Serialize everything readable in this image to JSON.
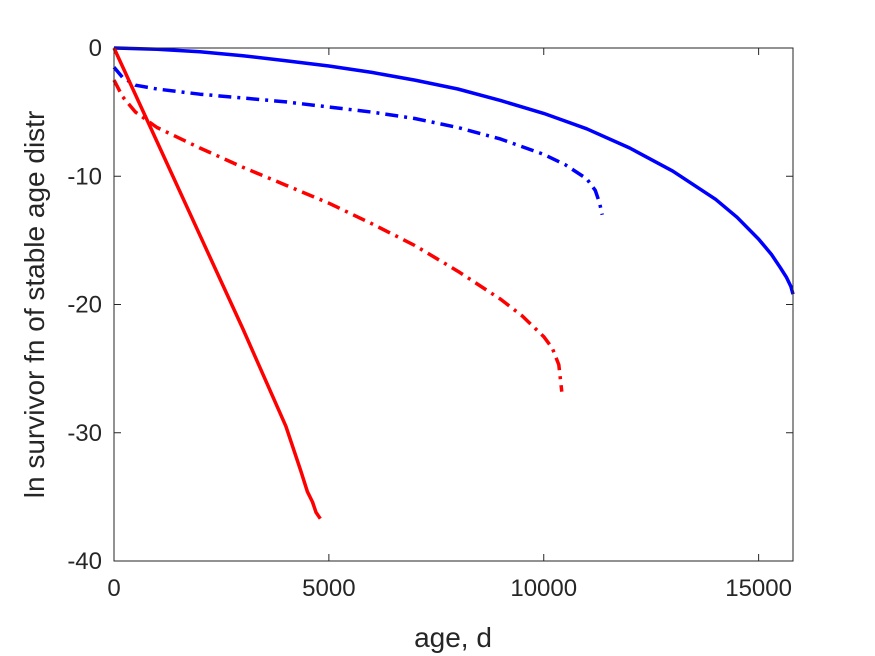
{
  "chart_data": {
    "type": "line",
    "xlabel": "age, d",
    "ylabel": "ln survivor fn of stable age distr",
    "xlim": [
      0,
      15800
    ],
    "ylim": [
      -40,
      0
    ],
    "xticks": [
      0,
      5000,
      10000,
      15000
    ],
    "yticks": [
      0,
      -10,
      -20,
      -30,
      -40
    ],
    "xtick_labels": [
      "0",
      "5000",
      "10000",
      "15000"
    ],
    "ytick_labels": [
      "0",
      "-10",
      "-20",
      "-30",
      "-40"
    ],
    "grid": false,
    "legend": "none",
    "series": [
      {
        "color": "#0000ff",
        "style": "solid",
        "points": [
          [
            0,
            0
          ],
          [
            1000,
            -0.1
          ],
          [
            2000,
            -0.3
          ],
          [
            3000,
            -0.6
          ],
          [
            4000,
            -1.0
          ],
          [
            5000,
            -1.4
          ],
          [
            6000,
            -1.9
          ],
          [
            7000,
            -2.5
          ],
          [
            8000,
            -3.2
          ],
          [
            9000,
            -4.1
          ],
          [
            10000,
            -5.1
          ],
          [
            11000,
            -6.3
          ],
          [
            12000,
            -7.8
          ],
          [
            13000,
            -9.6
          ],
          [
            14000,
            -11.8
          ],
          [
            14500,
            -13.2
          ],
          [
            15000,
            -14.9
          ],
          [
            15300,
            -16.1
          ],
          [
            15500,
            -17.1
          ],
          [
            15650,
            -17.9
          ],
          [
            15750,
            -18.6
          ],
          [
            15800,
            -19.2
          ]
        ]
      },
      {
        "color": "#0000ff",
        "style": "dashdot",
        "points": [
          [
            0,
            -1.5
          ],
          [
            200,
            -2.3
          ],
          [
            500,
            -2.9
          ],
          [
            1000,
            -3.2
          ],
          [
            2000,
            -3.6
          ],
          [
            3000,
            -3.9
          ],
          [
            4000,
            -4.2
          ],
          [
            5000,
            -4.6
          ],
          [
            6000,
            -5.0
          ],
          [
            7000,
            -5.5
          ],
          [
            8000,
            -6.2
          ],
          [
            9000,
            -7.1
          ],
          [
            10000,
            -8.3
          ],
          [
            10500,
            -9.1
          ],
          [
            11000,
            -10.2
          ],
          [
            11200,
            -11.1
          ],
          [
            11300,
            -12.1
          ],
          [
            11360,
            -13.0
          ]
        ]
      },
      {
        "color": "#ff0000",
        "style": "solid",
        "points": [
          [
            0,
            0
          ],
          [
            1000,
            -7.3
          ],
          [
            2000,
            -14.6
          ],
          [
            3000,
            -21.9
          ],
          [
            4000,
            -29.5
          ],
          [
            4350,
            -33.0
          ],
          [
            4500,
            -34.6
          ],
          [
            4620,
            -35.4
          ],
          [
            4700,
            -36.2
          ],
          [
            4800,
            -36.7
          ]
        ]
      },
      {
        "color": "#ff0000",
        "style": "dashdot",
        "points": [
          [
            0,
            -2.5
          ],
          [
            200,
            -3.8
          ],
          [
            500,
            -5.0
          ],
          [
            1000,
            -6.2
          ],
          [
            2000,
            -7.8
          ],
          [
            3000,
            -9.3
          ],
          [
            4000,
            -10.7
          ],
          [
            5000,
            -12.1
          ],
          [
            6000,
            -13.7
          ],
          [
            7000,
            -15.4
          ],
          [
            8000,
            -17.4
          ],
          [
            9000,
            -19.6
          ],
          [
            9500,
            -20.9
          ],
          [
            10000,
            -22.5
          ],
          [
            10200,
            -23.4
          ],
          [
            10350,
            -24.7
          ],
          [
            10420,
            -26.8
          ]
        ]
      }
    ]
  }
}
